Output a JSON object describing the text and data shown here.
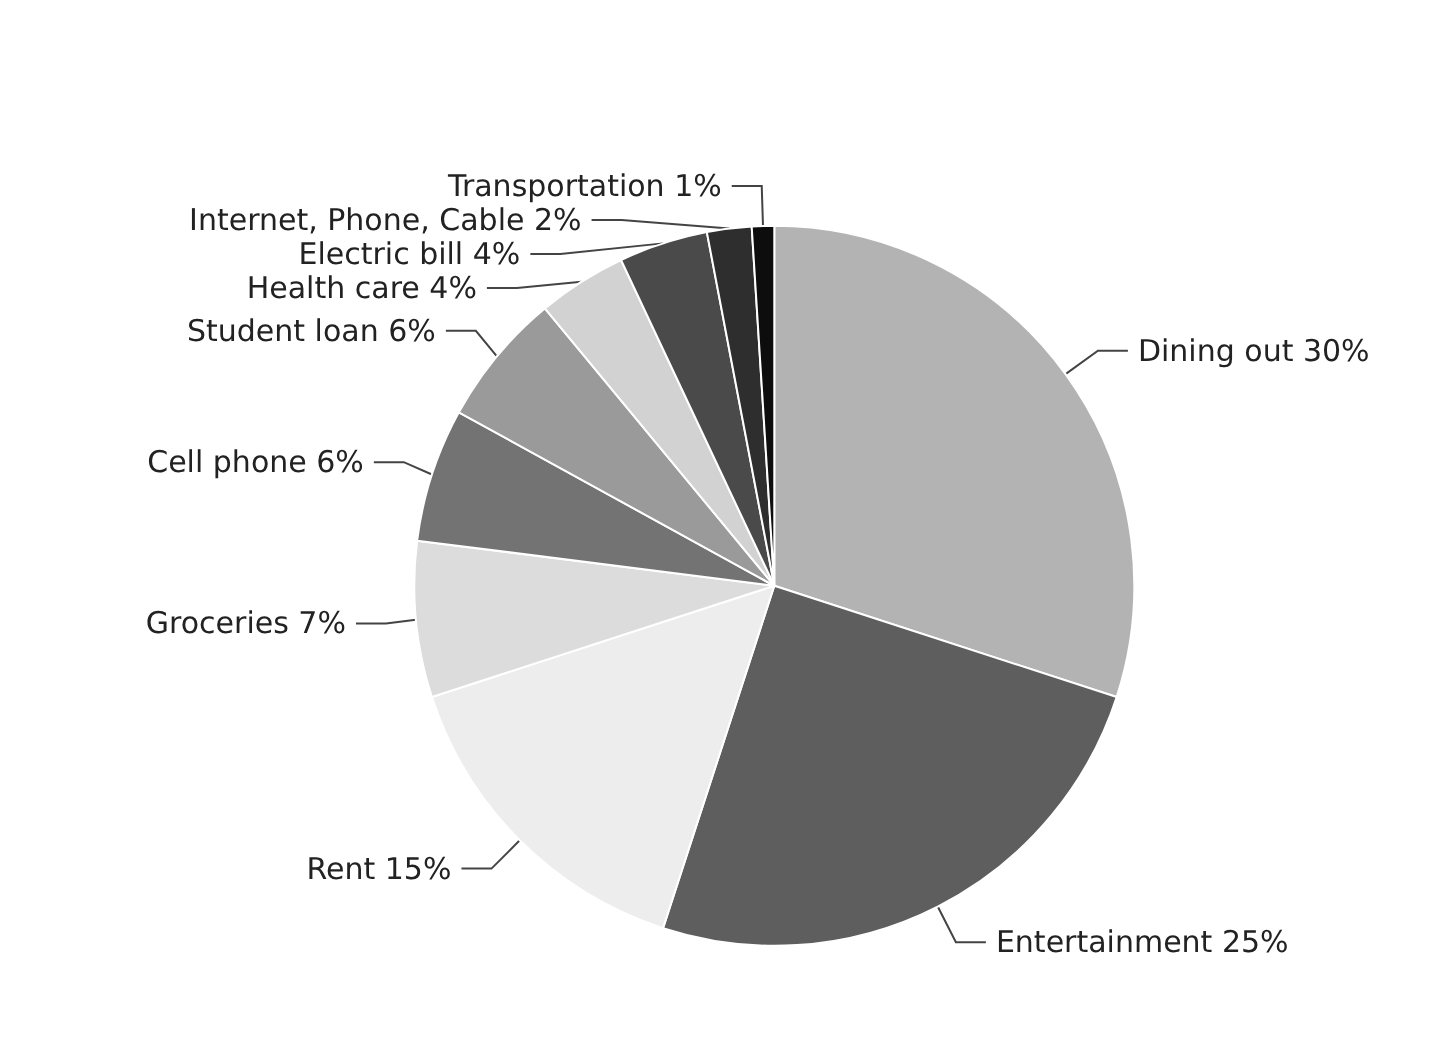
{
  "chart_data": {
    "type": "pie",
    "categories": [
      "Dining out",
      "Entertainment",
      "Rent",
      "Groceries",
      "Cell phone",
      "Student loan",
      "Health care",
      "Electric bill",
      "Internet, Phone, Cable",
      "Transportation"
    ],
    "values": [
      30,
      25,
      15,
      7,
      6,
      6,
      4,
      4,
      2,
      1
    ],
    "value_labels": [
      "30%",
      "25%",
      "15%",
      "7%",
      "6%",
      "6%",
      "4%",
      "4%",
      "2%",
      "1%"
    ],
    "colors": [
      "#b3b3b3",
      "#5e5e5e",
      "#ededed",
      "#dcdcdc",
      "#737373",
      "#9a9a9a",
      "#d2d2d2",
      "#4a4a4a",
      "#2e2e2e",
      "#0d0d0d"
    ],
    "legend": false
  }
}
